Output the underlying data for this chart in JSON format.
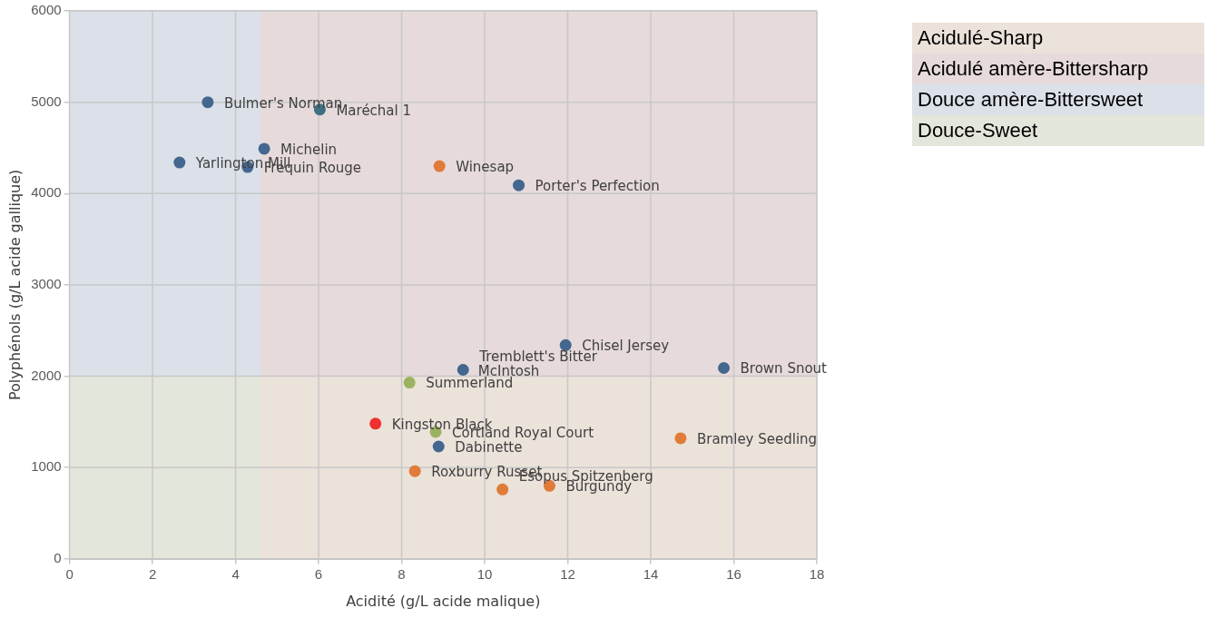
{
  "chart_data": {
    "type": "scatter",
    "xlabel": "Acidité (g/L acide malique)",
    "ylabel": "Polyphénols (g/L acide gallique)",
    "xlim": [
      0,
      18
    ],
    "xticks": [
      0,
      2,
      4,
      6,
      8,
      10,
      12,
      14,
      16,
      18
    ],
    "ylim": [
      0,
      6000
    ],
    "yticks": [
      0,
      1000,
      2000,
      3000,
      4000,
      5000,
      6000
    ],
    "grid": true,
    "legend": "top right",
    "series": [
      {
        "type": "area",
        "name": "Acidulé-Sharp",
        "color": "#ebe2da",
        "x": [
          4.6,
          18
        ],
        "values": [
          2000,
          2000
        ]
      },
      {
        "type": "area",
        "name": "Acidulé amère-Bittersharp",
        "color": "#e6dadb",
        "x": [
          4.6,
          18
        ],
        "values": [
          6000,
          6000
        ]
      },
      {
        "type": "area",
        "name": "Douce amère-Bittersweet",
        "color": "#dbe0e9",
        "x": [
          0,
          4.6
        ],
        "values": [
          6000,
          6000
        ]
      },
      {
        "type": "area",
        "name": "Douce-Sweet",
        "color": "#e3e6da",
        "x": [
          0,
          4.6
        ],
        "values": [
          2000,
          2000
        ]
      },
      {
        "x": [
          3.33,
          6.03,
          4.69,
          2.65,
          4.29,
          8.91,
          10.82,
          11.95,
          15.76,
          null,
          9.48,
          8.19,
          7.37,
          8.82,
          8.89,
          14.72,
          8.32,
          11.56,
          10.43
        ],
        "values": [
          5000,
          4920,
          4490,
          4340,
          4290,
          4300,
          4090,
          2340,
          2090,
          null,
          2070,
          1930,
          1480,
          1390,
          1230,
          1320,
          960,
          800,
          760
        ],
        "colors": [
          "#44678f",
          "#3f7080",
          "#44678f",
          "#44678f",
          "#44678f",
          "#e07b39",
          "#44678f",
          "#44678f",
          "#44678f",
          "#9bb360",
          "#44678f",
          "#9bb360",
          "#f03030",
          "#9bb360",
          "#44678f",
          "#e07b39",
          "#e07b39",
          "#e07b39",
          "#e07b39"
        ]
      }
    ],
    "annotations": [
      {
        "text": "Bulmer's Norman",
        "x": 3.33,
        "y": 5000
      },
      {
        "text": "Maréchal 1",
        "x": 6.03,
        "y": 4920
      },
      {
        "text": "Michelin",
        "x": 4.69,
        "y": 4490
      },
      {
        "text": "Yarlington Mill",
        "x": 2.65,
        "y": 4340
      },
      {
        "text": "Frequin Rouge",
        "x": 4.29,
        "y": 4290
      },
      {
        "text": "Winesap",
        "x": 8.91,
        "y": 4300
      },
      {
        "text": "Porter's Perfection",
        "x": 10.82,
        "y": 4090
      },
      {
        "text": "Chisel Jersey",
        "x": 11.95,
        "y": 2340
      },
      {
        "text": "Brown Snout",
        "x": 15.76,
        "y": 2090
      },
      {
        "text": "McIntosh",
        "x": 9.45,
        "y": 2060
      },
      {
        "text": "Tremblett's Bitter",
        "x": 9.48,
        "y": 2070
      },
      {
        "text": "Summerland",
        "x": 8.19,
        "y": 1930
      },
      {
        "text": "Kingston Black",
        "x": 7.37,
        "y": 1480
      },
      {
        "text": "Cortland Royal Court",
        "x": 8.82,
        "y": 1390
      },
      {
        "text": "Dabinette",
        "x": 8.89,
        "y": 1230
      },
      {
        "text": "Bramley Seedling",
        "x": 14.72,
        "y": 1320
      },
      {
        "text": "Roxburry Russet",
        "x": 8.32,
        "y": 960
      },
      {
        "text": "Burgundy",
        "x": 11.56,
        "y": 800
      },
      {
        "text": "Esopus Spitzenberg",
        "x": 10.43,
        "y": 760
      }
    ]
  }
}
